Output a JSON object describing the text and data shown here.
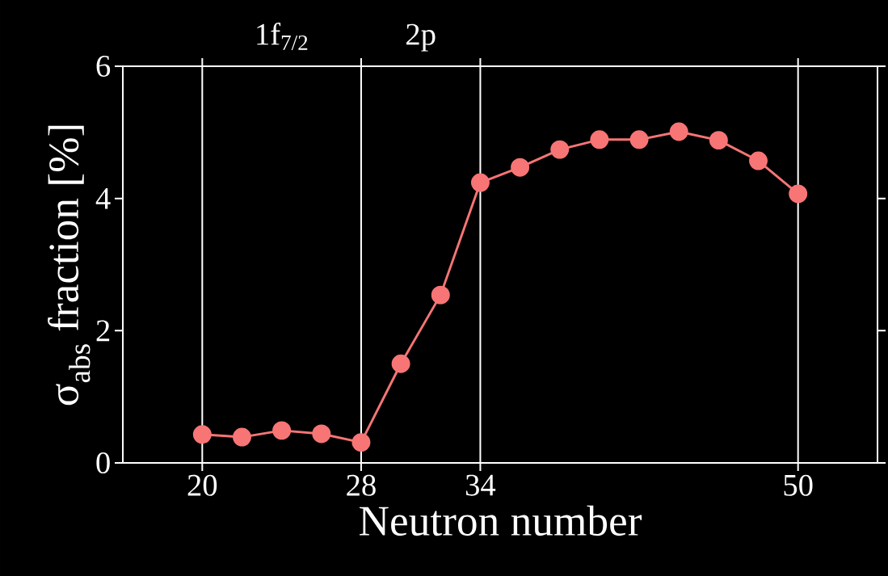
{
  "chart_data": {
    "type": "line",
    "xlabel": "Neutron number",
    "ylabel": "σ$_{abs}$ fraction [%]",
    "x": [
      20,
      22,
      24,
      26,
      28,
      30,
      32,
      34,
      36,
      38,
      40,
      42,
      44,
      46,
      48,
      50
    ],
    "series": [
      {
        "color": "#f87575",
        "values": [
          0.43,
          0.39,
          0.49,
          0.44,
          0.31,
          1.5,
          2.54,
          4.24,
          4.47,
          4.74,
          4.89,
          4.89,
          5.01,
          4.88,
          4.57,
          4.07
        ]
      }
    ],
    "xlim": [
      16,
      54
    ],
    "ylim": [
      0,
      6
    ],
    "xticks": [
      20,
      28,
      34,
      50
    ],
    "yticks": [
      0,
      2,
      4,
      6
    ],
    "annotations": [
      "1f$_{7/2}$",
      "2p"
    ],
    "grid": "x",
    "marker": "circle",
    "line_style": "solid"
  }
}
